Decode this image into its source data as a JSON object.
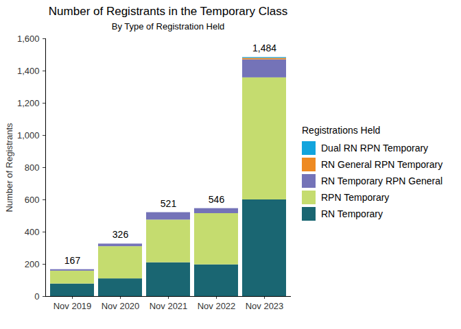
{
  "chart_data": {
    "type": "bar",
    "title": "Number of Registrants in the Temporary Class",
    "subtitle": "By Type of Registration Held",
    "y_label": "Number of Registrants",
    "legend_title": "Registrations Held",
    "legend": "right",
    "stacked": true,
    "categories": [
      "Nov 2019",
      "Nov 2020",
      "Nov 2021",
      "Nov 2022",
      "Nov 2023"
    ],
    "series": [
      {
        "name": "RN Temporary",
        "color": "#1a6672",
        "values": [
          78,
          110,
          210,
          197,
          600
        ]
      },
      {
        "name": "RPN Temporary",
        "color": "#c5dc6f",
        "values": [
          80,
          200,
          265,
          318,
          758
        ]
      },
      {
        "name": "RN Temporary RPN General",
        "color": "#7473b8",
        "values": [
          9,
          16,
          46,
          31,
          112
        ]
      },
      {
        "name": "RN General RPN Temporary",
        "color": "#ee8a22",
        "values": [
          0,
          0,
          0,
          0,
          9
        ]
      },
      {
        "name": "Dual RN RPN Temporary",
        "color": "#12a4dd",
        "values": [
          0,
          0,
          0,
          0,
          5
        ]
      }
    ],
    "totals": [
      167,
      326,
      521,
      546,
      1484
    ],
    "total_labels": [
      "167",
      "326",
      "521",
      "546",
      "1,484"
    ],
    "ylim": [
      0,
      1600
    ],
    "yticks": [
      0,
      200,
      400,
      600,
      800,
      {
        "value": 1000,
        "label": "1,000"
      },
      {
        "value": 1200,
        "label": "1,200"
      },
      {
        "value": 1400,
        "label": "1,400"
      },
      {
        "value": 1600,
        "label": "1,600"
      }
    ],
    "grid": false
  }
}
